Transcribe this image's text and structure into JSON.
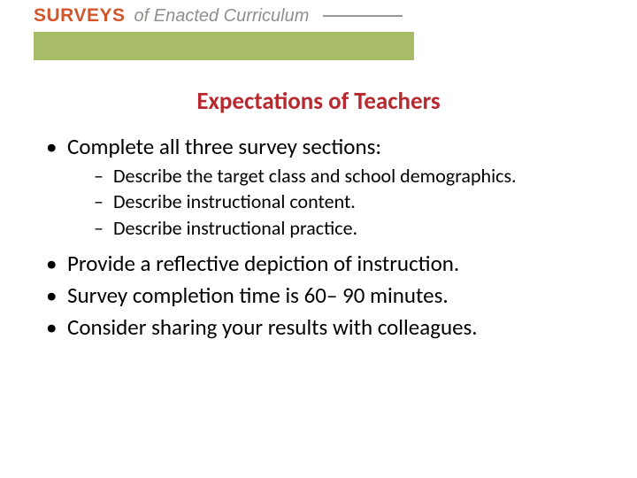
{
  "colors": {
    "brand_orange": "#d2562b",
    "muted_gray": "#908f8b",
    "olive_green": "#a8bb66",
    "title_red": "#b8292f",
    "body_black": "#000000",
    "hr_gray": "#9a9893"
  },
  "header": {
    "word_surveys": "SURVEYS",
    "of_enacted": "of Enacted Curriculum"
  },
  "title": "Expectations of Teachers",
  "bullets": {
    "b1": "Complete all three survey sections:",
    "b1_subs": {
      "s1": "Describe the target class and school demographics.",
      "s2": "Describe instructional content.",
      "s3": "Describe instructional practice."
    },
    "b2": "Provide a reflective depiction of instruction.",
    "b3": "Survey completion time is 60– 90 minutes.",
    "b4": "Consider sharing your results with colleagues."
  }
}
